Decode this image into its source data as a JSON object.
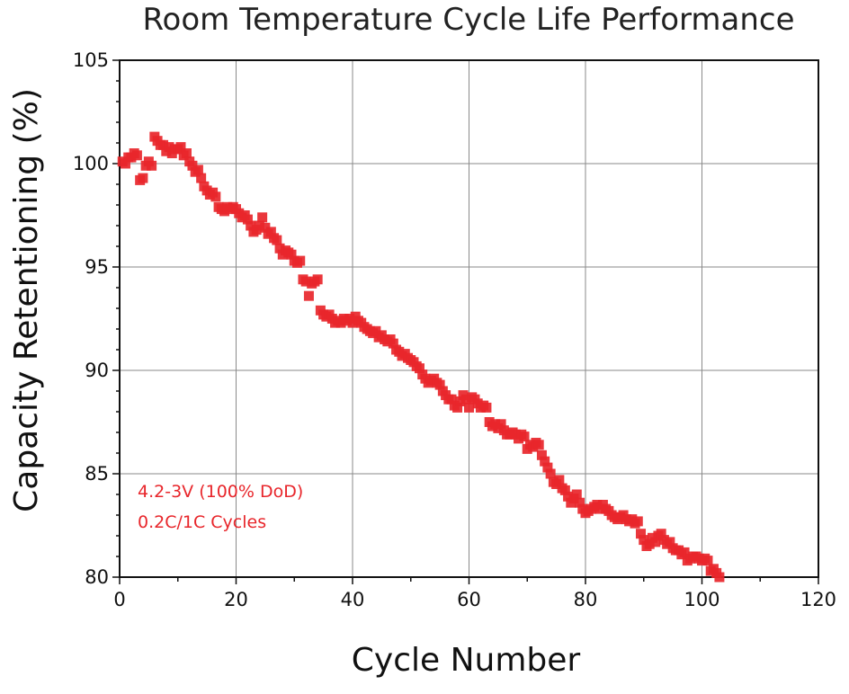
{
  "chart_data": {
    "type": "scatter",
    "title": "Room Temperature Cycle Life Performance",
    "xlabel": "Cycle Number",
    "ylabel": "Capacity Retentioning (%)",
    "xlim": [
      0,
      120
    ],
    "ylim": [
      80,
      105
    ],
    "xticks": [
      0,
      20,
      40,
      60,
      80,
      100,
      120
    ],
    "yticks": [
      80,
      85,
      90,
      95,
      100,
      105
    ],
    "grid": true,
    "series_color": "#e8262b",
    "annotations": [
      "4.2-3V (100% DoD)",
      "0.2C/1C Cycles"
    ],
    "series": [
      {
        "points": [
          [
            0.5,
            100.1
          ],
          [
            1,
            100.0
          ],
          [
            1.5,
            100.3
          ],
          [
            2,
            100.3
          ],
          [
            2.5,
            100.5
          ],
          [
            3,
            100.4
          ],
          [
            3.5,
            99.2
          ],
          [
            4,
            99.3
          ],
          [
            4.5,
            99.9
          ],
          [
            5,
            100.1
          ],
          [
            5.5,
            99.9
          ],
          [
            6,
            101.3
          ],
          [
            6.5,
            101.1
          ],
          [
            7,
            100.9
          ],
          [
            7.5,
            100.9
          ],
          [
            8,
            100.6
          ],
          [
            8.5,
            100.8
          ],
          [
            9,
            100.5
          ],
          [
            9.5,
            100.7
          ],
          [
            10,
            100.7
          ],
          [
            10.5,
            100.8
          ],
          [
            11,
            100.4
          ],
          [
            11.5,
            100.5
          ],
          [
            12,
            100.1
          ],
          [
            12.5,
            99.9
          ],
          [
            13,
            99.6
          ],
          [
            13.5,
            99.7
          ],
          [
            14,
            99.3
          ],
          [
            14.5,
            98.9
          ],
          [
            15,
            98.7
          ],
          [
            15.5,
            98.5
          ],
          [
            16,
            98.6
          ],
          [
            16.5,
            98.4
          ],
          [
            17,
            97.9
          ],
          [
            17.5,
            97.8
          ],
          [
            18,
            97.7
          ],
          [
            18.5,
            97.9
          ],
          [
            19,
            97.8
          ],
          [
            19.5,
            97.9
          ],
          [
            20,
            97.8
          ],
          [
            20.5,
            97.6
          ],
          [
            21,
            97.4
          ],
          [
            21.5,
            97.5
          ],
          [
            22,
            97.3
          ],
          [
            22.5,
            97.0
          ],
          [
            23,
            96.7
          ],
          [
            23.5,
            96.8
          ],
          [
            24,
            97.0
          ],
          [
            24.5,
            97.4
          ],
          [
            25,
            96.9
          ],
          [
            25.5,
            96.6
          ],
          [
            26,
            96.7
          ],
          [
            26.5,
            96.4
          ],
          [
            27,
            96.3
          ],
          [
            27.5,
            95.9
          ],
          [
            28,
            95.6
          ],
          [
            28.5,
            95.8
          ],
          [
            29,
            95.7
          ],
          [
            29.5,
            95.6
          ],
          [
            30,
            95.3
          ],
          [
            30.5,
            95.2
          ],
          [
            31,
            95.3
          ],
          [
            31.5,
            94.4
          ],
          [
            32,
            94.3
          ],
          [
            32.5,
            93.6
          ],
          [
            33,
            94.2
          ],
          [
            33.5,
            94.3
          ],
          [
            34,
            94.4
          ],
          [
            34.5,
            92.9
          ],
          [
            35,
            92.7
          ],
          [
            35.5,
            92.6
          ],
          [
            36,
            92.7
          ],
          [
            36.5,
            92.5
          ],
          [
            37,
            92.3
          ],
          [
            37.5,
            92.4
          ],
          [
            38,
            92.3
          ],
          [
            38.5,
            92.5
          ],
          [
            39,
            92.4
          ],
          [
            39.5,
            92.5
          ],
          [
            40,
            92.3
          ],
          [
            40.5,
            92.6
          ],
          [
            41,
            92.4
          ],
          [
            41.5,
            92.3
          ],
          [
            42,
            92.1
          ],
          [
            42.5,
            92.0
          ],
          [
            43,
            91.9
          ],
          [
            43.5,
            91.8
          ],
          [
            44,
            91.9
          ],
          [
            44.5,
            91.6
          ],
          [
            45,
            91.7
          ],
          [
            45.5,
            91.5
          ],
          [
            46,
            91.4
          ],
          [
            46.5,
            91.5
          ],
          [
            47,
            91.3
          ],
          [
            47.5,
            91.0
          ],
          [
            48,
            90.9
          ],
          [
            48.5,
            90.7
          ],
          [
            49,
            90.8
          ],
          [
            49.5,
            90.6
          ],
          [
            50,
            90.5
          ],
          [
            50.5,
            90.4
          ],
          [
            51,
            90.2
          ],
          [
            51.5,
            90.1
          ],
          [
            52,
            89.8
          ],
          [
            52.5,
            89.6
          ],
          [
            53,
            89.4
          ],
          [
            53.5,
            89.5
          ],
          [
            54,
            89.6
          ],
          [
            54.5,
            89.4
          ],
          [
            55,
            89.3
          ],
          [
            55.5,
            89.0
          ],
          [
            56,
            88.8
          ],
          [
            56.5,
            88.6
          ],
          [
            57,
            88.6
          ],
          [
            57.5,
            88.3
          ],
          [
            58,
            88.2
          ],
          [
            58.5,
            88.5
          ],
          [
            59,
            88.8
          ],
          [
            59.5,
            88.6
          ],
          [
            60,
            88.2
          ],
          [
            60.5,
            88.7
          ],
          [
            61,
            88.6
          ],
          [
            61.5,
            88.4
          ],
          [
            62,
            88.2
          ],
          [
            62.5,
            88.3
          ],
          [
            63,
            88.2
          ],
          [
            63.5,
            87.5
          ],
          [
            64,
            87.3
          ],
          [
            64.5,
            87.4
          ],
          [
            65,
            87.2
          ],
          [
            65.5,
            87.4
          ],
          [
            66,
            87.1
          ],
          [
            66.5,
            86.9
          ],
          [
            67,
            86.9
          ],
          [
            67.5,
            87.0
          ],
          [
            68,
            86.9
          ],
          [
            68.5,
            86.7
          ],
          [
            69,
            86.9
          ],
          [
            69.5,
            86.8
          ],
          [
            70,
            86.2
          ],
          [
            70.5,
            86.4
          ],
          [
            71,
            86.3
          ],
          [
            71.5,
            86.5
          ],
          [
            72,
            86.4
          ],
          [
            72.5,
            85.9
          ],
          [
            73,
            85.6
          ],
          [
            73.5,
            85.3
          ],
          [
            74,
            85.0
          ],
          [
            74.5,
            84.6
          ],
          [
            75,
            84.5
          ],
          [
            75.5,
            84.7
          ],
          [
            76,
            84.3
          ],
          [
            76.5,
            84.2
          ],
          [
            77,
            83.9
          ],
          [
            77.5,
            83.6
          ],
          [
            78,
            83.8
          ],
          [
            78.5,
            84.0
          ],
          [
            79,
            83.6
          ],
          [
            79.5,
            83.3
          ],
          [
            80,
            83.1
          ],
          [
            80.5,
            83.2
          ],
          [
            81,
            83.3
          ],
          [
            81.5,
            83.4
          ],
          [
            82,
            83.5
          ],
          [
            82.5,
            83.3
          ],
          [
            83,
            83.5
          ],
          [
            83.5,
            83.3
          ],
          [
            84,
            83.2
          ],
          [
            84.5,
            83.0
          ],
          [
            85,
            82.9
          ],
          [
            85.5,
            82.8
          ],
          [
            86,
            82.9
          ],
          [
            86.5,
            83.0
          ],
          [
            87,
            82.8
          ],
          [
            87.5,
            82.7
          ],
          [
            88,
            82.8
          ],
          [
            88.5,
            82.6
          ],
          [
            89,
            82.7
          ],
          [
            89.5,
            82.1
          ],
          [
            90,
            81.8
          ],
          [
            90.5,
            81.5
          ],
          [
            91,
            81.6
          ],
          [
            91.5,
            81.9
          ],
          [
            92,
            81.7
          ],
          [
            92.5,
            82.0
          ],
          [
            93,
            82.1
          ],
          [
            93.5,
            81.8
          ],
          [
            94,
            81.6
          ],
          [
            94.5,
            81.7
          ],
          [
            95,
            81.4
          ],
          [
            95.5,
            81.3
          ],
          [
            96,
            81.3
          ],
          [
            96.5,
            81.1
          ],
          [
            97,
            81.2
          ],
          [
            97.5,
            80.8
          ],
          [
            98,
            80.9
          ],
          [
            98.5,
            81.0
          ],
          [
            99,
            81.0
          ],
          [
            99.5,
            80.9
          ],
          [
            100,
            80.8
          ],
          [
            100.5,
            80.9
          ],
          [
            101,
            80.8
          ],
          [
            101.5,
            80.3
          ],
          [
            102,
            80.4
          ],
          [
            102.5,
            80.2
          ],
          [
            103,
            80.0
          ]
        ]
      }
    ]
  }
}
